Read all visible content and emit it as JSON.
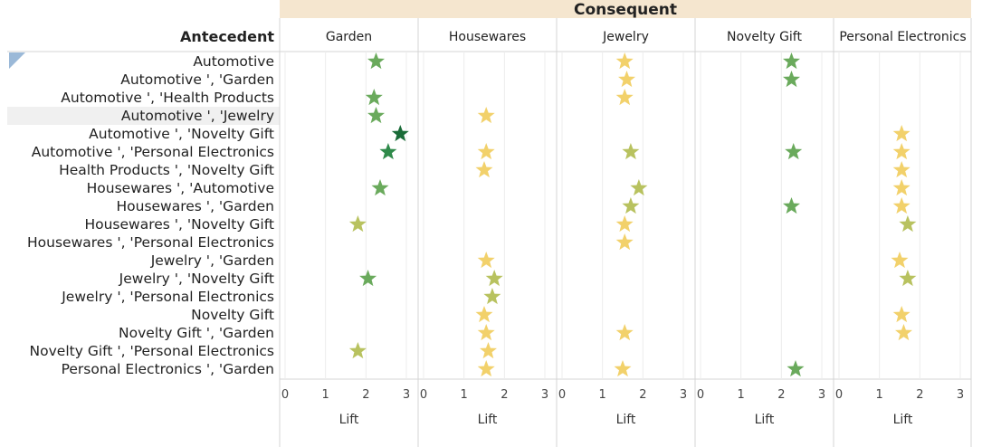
{
  "chart_data": {
    "type": "scatter",
    "title": "",
    "column_group_label": "Consequent",
    "row_group_label": "Antecedent",
    "xlabel": "Lift",
    "xlim": [
      0,
      3
    ],
    "xticks": [
      0,
      1,
      2,
      3
    ],
    "mark": "star",
    "color_scale": [
      "#f2d16b",
      "#b8c25f",
      "#6aaa5c",
      "#2f8a4a",
      "#1a6b38"
    ],
    "columns": [
      "Garden",
      "Housewares",
      "Jewelry",
      "Novelty Gift",
      "Personal Electronics"
    ],
    "rows": [
      "Automotive",
      "Automotive ', 'Garden",
      "Automotive ', 'Health Products",
      "Automotive ', 'Jewelry",
      "Automotive ', 'Novelty Gift",
      "Automotive ', 'Personal Electronics",
      "Health Products ', 'Novelty Gift",
      "Housewares ', 'Automotive",
      "Housewares ', 'Garden",
      "Housewares ', 'Novelty Gift",
      "Housewares ', 'Personal Electronics",
      "Jewelry ', 'Garden",
      "Jewelry ', 'Novelty Gift",
      "Jewelry ', 'Personal Electronics",
      "Novelty Gift",
      "Novelty Gift ', 'Garden",
      "Novelty Gift ', 'Personal Electronics",
      "Personal Electronics ', 'Garden"
    ],
    "highlighted_row": "Automotive ', 'Jewelry",
    "points": [
      {
        "row": "Automotive",
        "col": "Garden",
        "lift": 2.25
      },
      {
        "row": "Automotive",
        "col": "Jewelry",
        "lift": 1.55
      },
      {
        "row": "Automotive",
        "col": "Novelty Gift",
        "lift": 2.25
      },
      {
        "row": "Automotive ', 'Garden",
        "col": "Jewelry",
        "lift": 1.6
      },
      {
        "row": "Automotive ', 'Garden",
        "col": "Novelty Gift",
        "lift": 2.25
      },
      {
        "row": "Automotive ', 'Health Products",
        "col": "Garden",
        "lift": 2.2
      },
      {
        "row": "Automotive ', 'Health Products",
        "col": "Jewelry",
        "lift": 1.55
      },
      {
        "row": "Automotive ', 'Jewelry",
        "col": "Garden",
        "lift": 2.25
      },
      {
        "row": "Automotive ', 'Jewelry",
        "col": "Housewares",
        "lift": 1.55
      },
      {
        "row": "Automotive ', 'Novelty Gift",
        "col": "Garden",
        "lift": 2.85
      },
      {
        "row": "Automotive ', 'Novelty Gift",
        "col": "Personal Electronics",
        "lift": 1.55
      },
      {
        "row": "Automotive ', 'Personal Electronics",
        "col": "Garden",
        "lift": 2.55
      },
      {
        "row": "Automotive ', 'Personal Electronics",
        "col": "Housewares",
        "lift": 1.55
      },
      {
        "row": "Automotive ', 'Personal Electronics",
        "col": "Jewelry",
        "lift": 1.7
      },
      {
        "row": "Automotive ', 'Personal Electronics",
        "col": "Novelty Gift",
        "lift": 2.3
      },
      {
        "row": "Automotive ', 'Personal Electronics",
        "col": "Personal Electronics",
        "lift": 1.55
      },
      {
        "row": "Health Products ', 'Novelty Gift",
        "col": "Housewares",
        "lift": 1.5
      },
      {
        "row": "Health Products ', 'Novelty Gift",
        "col": "Personal Electronics",
        "lift": 1.55
      },
      {
        "row": "Housewares ', 'Automotive",
        "col": "Garden",
        "lift": 2.35
      },
      {
        "row": "Housewares ', 'Automotive",
        "col": "Jewelry",
        "lift": 1.9
      },
      {
        "row": "Housewares ', 'Automotive",
        "col": "Personal Electronics",
        "lift": 1.55
      },
      {
        "row": "Housewares ', 'Garden",
        "col": "Jewelry",
        "lift": 1.7
      },
      {
        "row": "Housewares ', 'Garden",
        "col": "Novelty Gift",
        "lift": 2.25
      },
      {
        "row": "Housewares ', 'Garden",
        "col": "Personal Electronics",
        "lift": 1.55
      },
      {
        "row": "Housewares ', 'Novelty Gift",
        "col": "Garden",
        "lift": 1.8
      },
      {
        "row": "Housewares ', 'Novelty Gift",
        "col": "Jewelry",
        "lift": 1.55
      },
      {
        "row": "Housewares ', 'Novelty Gift",
        "col": "Personal Electronics",
        "lift": 1.7
      },
      {
        "row": "Housewares ', 'Personal Electronics",
        "col": "Jewelry",
        "lift": 1.55
      },
      {
        "row": "Jewelry ', 'Garden",
        "col": "Housewares",
        "lift": 1.55
      },
      {
        "row": "Jewelry ', 'Garden",
        "col": "Personal Electronics",
        "lift": 1.5
      },
      {
        "row": "Jewelry ', 'Novelty Gift",
        "col": "Garden",
        "lift": 2.05
      },
      {
        "row": "Jewelry ', 'Novelty Gift",
        "col": "Housewares",
        "lift": 1.75
      },
      {
        "row": "Jewelry ', 'Novelty Gift",
        "col": "Personal Electronics",
        "lift": 1.7
      },
      {
        "row": "Jewelry ', 'Personal Electronics",
        "col": "Housewares",
        "lift": 1.7
      },
      {
        "row": "Novelty Gift",
        "col": "Housewares",
        "lift": 1.5
      },
      {
        "row": "Novelty Gift",
        "col": "Personal Electronics",
        "lift": 1.55
      },
      {
        "row": "Novelty Gift ', 'Garden",
        "col": "Housewares",
        "lift": 1.55
      },
      {
        "row": "Novelty Gift ', 'Garden",
        "col": "Jewelry",
        "lift": 1.55
      },
      {
        "row": "Novelty Gift ', 'Garden",
        "col": "Personal Electronics",
        "lift": 1.6
      },
      {
        "row": "Novelty Gift ', 'Personal Electronics",
        "col": "Garden",
        "lift": 1.8
      },
      {
        "row": "Novelty Gift ', 'Personal Electronics",
        "col": "Housewares",
        "lift": 1.6
      },
      {
        "row": "Personal Electronics ', 'Garden",
        "col": "Housewares",
        "lift": 1.55
      },
      {
        "row": "Personal Electronics ', 'Garden",
        "col": "Jewelry",
        "lift": 1.5
      },
      {
        "row": "Personal Electronics ', 'Garden",
        "col": "Novelty Gift",
        "lift": 2.35
      }
    ]
  }
}
